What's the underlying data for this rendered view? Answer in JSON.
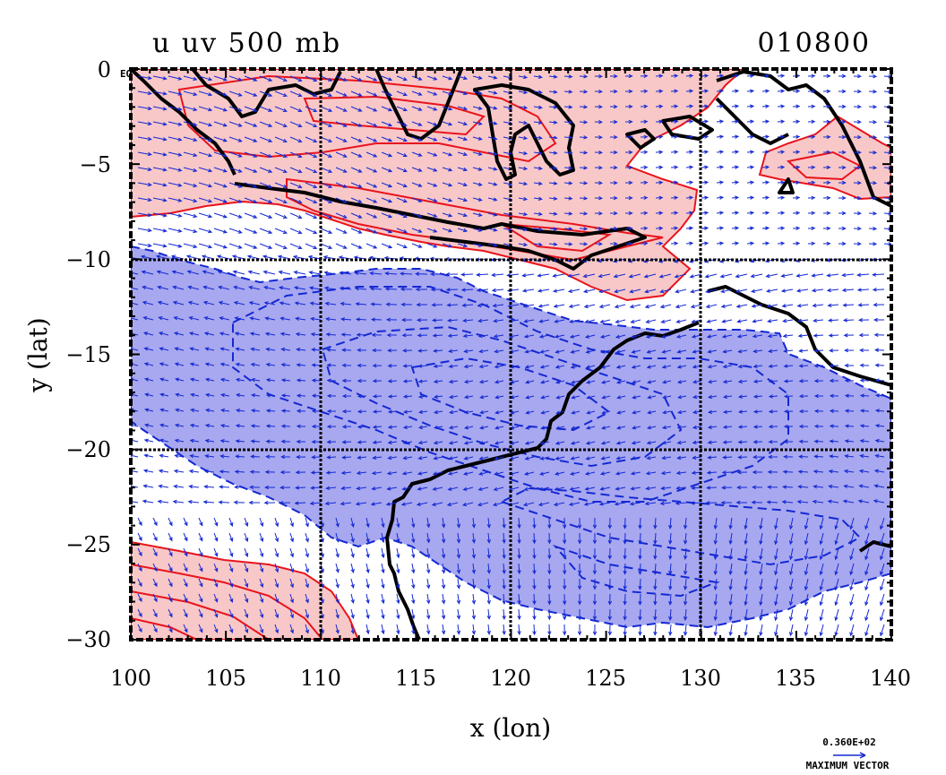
{
  "title": "u uv 500 mb",
  "date_label": "010800",
  "eq_label": "EQ",
  "axes": {
    "xlabel": "x (lon)",
    "ylabel": "y (lat)",
    "xlim": [
      100,
      140
    ],
    "ylim": [
      -30,
      0
    ],
    "x_ticks": [
      "100",
      "105",
      "110",
      "115",
      "120",
      "125",
      "130",
      "135",
      "140"
    ],
    "y_ticks": [
      "0",
      "−5",
      "−10",
      "−15",
      "−20",
      "−25",
      "−30"
    ]
  },
  "grid_lon": [
    110,
    120,
    130
  ],
  "grid_lat": [
    -10,
    -20
  ],
  "vector_legend": {
    "value": "0.360E+02",
    "label": "MAXIMUM VECTOR"
  },
  "colors": {
    "positive_fill": "#f8c8c8",
    "positive_contour": "#e8141c",
    "negative_fill": "#a8a8f0",
    "negative_contour": "#1428d2",
    "vector": "#1428d2",
    "coastline": "#000000",
    "grid": "#000000"
  }
}
